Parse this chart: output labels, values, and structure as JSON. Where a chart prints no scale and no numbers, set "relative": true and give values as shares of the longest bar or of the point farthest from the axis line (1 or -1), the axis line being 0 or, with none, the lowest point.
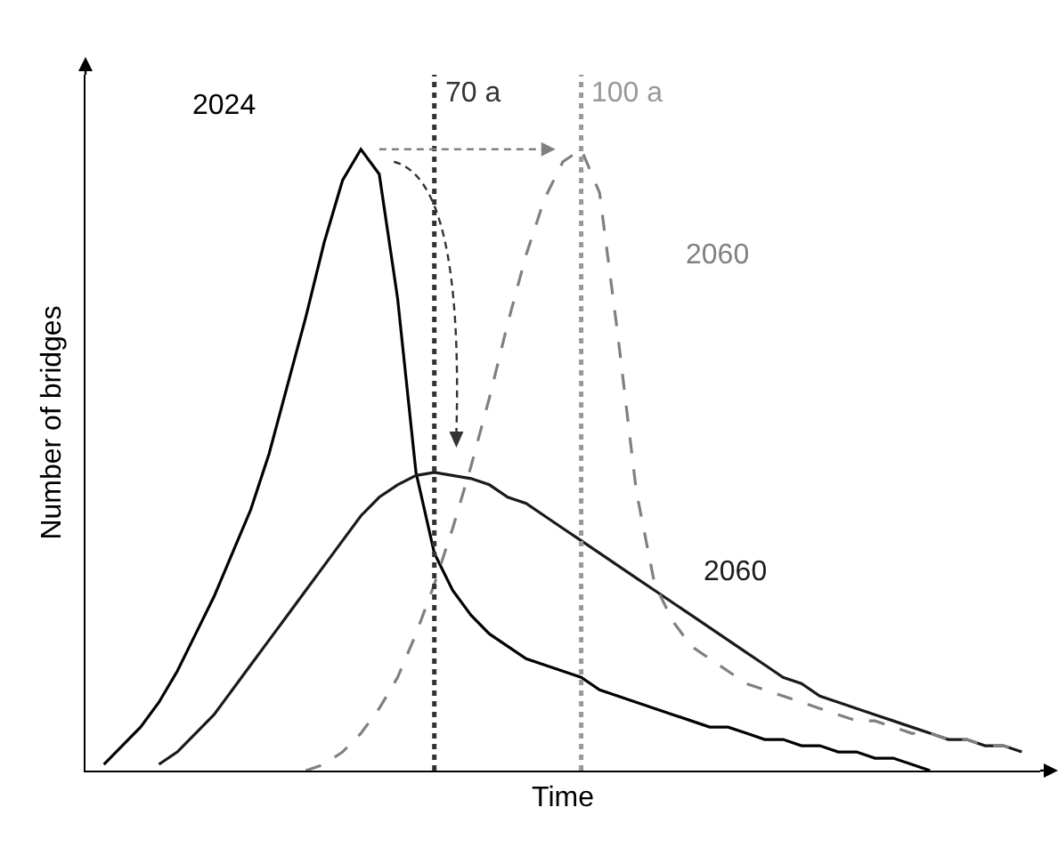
{
  "chart_data": {
    "type": "line",
    "relative": true,
    "xlabel": "Time",
    "ylabel": "Number of bridges",
    "legend": false,
    "marker": "none",
    "categories": [
      null,
      null,
      null,
      null,
      null,
      null,
      null,
      null,
      null,
      null,
      null,
      null,
      null,
      null,
      null,
      null,
      null,
      null,
      null,
      null,
      null,
      null,
      null,
      null,
      null,
      null,
      null,
      null,
      null,
      null,
      null,
      null,
      null,
      null,
      null,
      null,
      null,
      null,
      null,
      null,
      null,
      null,
      null,
      null,
      null,
      null,
      null,
      null,
      null,
      null,
      null
    ],
    "series": [
      {
        "name": "2024",
        "color": "#000000",
        "line_style": "solid",
        "values": [
          0.01,
          0.04,
          0.07,
          0.11,
          0.16,
          0.22,
          0.28,
          0.35,
          0.42,
          0.51,
          0.62,
          0.73,
          0.85,
          0.95,
          1,
          0.96,
          0.76,
          0.48,
          0.35,
          0.29,
          0.25,
          0.22,
          0.2,
          0.18,
          0.17,
          0.16,
          0.15,
          0.13,
          0.12,
          0.11,
          0.1,
          0.09,
          0.08,
          0.07,
          0.07,
          0.06,
          0.05,
          0.05,
          0.04,
          0.04,
          0.03,
          0.03,
          0.02,
          0.02,
          0.01,
          0,
          null,
          null,
          null,
          null,
          null
        ]
      },
      {
        "name": "2060",
        "color": "#1a1a1a",
        "line_style": "solid",
        "values": [
          null,
          null,
          null,
          0.01,
          0.03,
          0.06,
          0.09,
          0.13,
          0.17,
          0.21,
          0.25,
          0.29,
          0.33,
          0.37,
          0.41,
          0.44,
          0.46,
          0.475,
          0.48,
          0.475,
          0.47,
          0.46,
          0.44,
          0.43,
          0.41,
          0.39,
          0.37,
          0.35,
          0.33,
          0.31,
          0.29,
          0.27,
          0.25,
          0.23,
          0.21,
          0.19,
          0.17,
          0.15,
          0.14,
          0.12,
          0.11,
          0.1,
          0.09,
          0.08,
          0.07,
          0.06,
          0.05,
          0.05,
          0.04,
          0.04,
          0.03
        ]
      },
      {
        "name": "2060",
        "color": "#808080",
        "line_style": "dashed",
        "values": [
          null,
          null,
          null,
          null,
          null,
          null,
          null,
          null,
          null,
          null,
          null,
          0,
          0.01,
          0.03,
          0.06,
          0.1,
          0.15,
          0.22,
          0.3,
          0.39,
          0.49,
          0.6,
          0.72,
          0.83,
          0.92,
          0.98,
          1,
          0.93,
          0.7,
          0.45,
          0.3,
          0.24,
          0.2,
          0.18,
          0.16,
          0.14,
          0.13,
          0.12,
          0.11,
          0.1,
          0.09,
          0.08,
          0.08,
          0.07,
          0.06,
          0.06,
          0.05,
          0.05,
          0.04,
          0.04,
          0.03
        ]
      }
    ],
    "annotations": [
      "70 a",
      "100 a"
    ]
  }
}
